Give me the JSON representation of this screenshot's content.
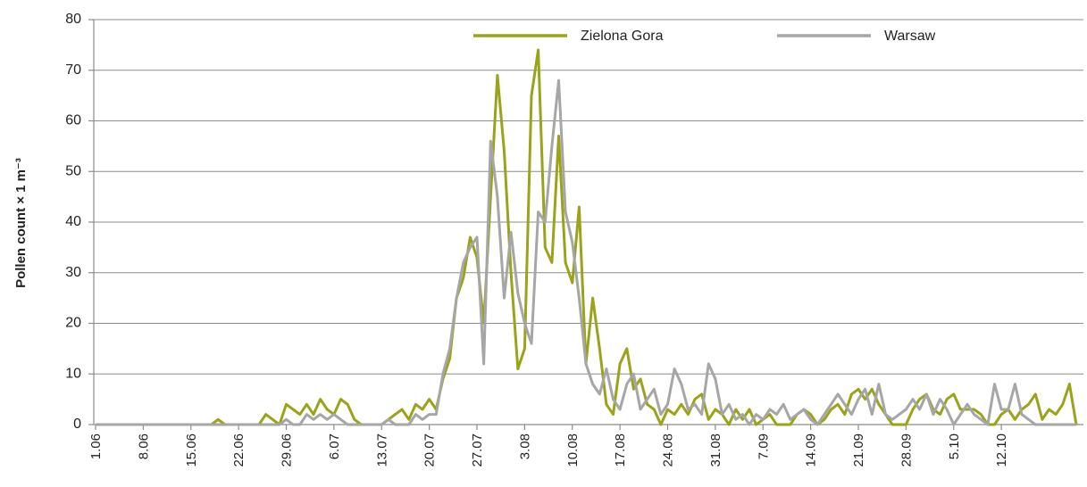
{
  "chart_data": {
    "type": "line",
    "y_label": "Pollen count × 1 m⁻³",
    "categories": [
      "1.06",
      null,
      null,
      null,
      null,
      null,
      null,
      "8.06",
      null,
      null,
      null,
      null,
      null,
      null,
      "15.06",
      null,
      null,
      null,
      null,
      null,
      null,
      "22.06",
      null,
      null,
      null,
      null,
      null,
      null,
      "29.06",
      null,
      null,
      null,
      null,
      null,
      null,
      "6.07",
      null,
      null,
      null,
      null,
      null,
      null,
      "13.07",
      null,
      null,
      null,
      null,
      null,
      null,
      "20.07",
      null,
      null,
      null,
      null,
      null,
      null,
      "27.07",
      null,
      null,
      null,
      null,
      null,
      null,
      "3.08",
      null,
      null,
      null,
      null,
      null,
      null,
      "10.08",
      null,
      null,
      null,
      null,
      null,
      null,
      "17.08",
      null,
      null,
      null,
      null,
      null,
      null,
      "24.08",
      null,
      null,
      null,
      null,
      null,
      null,
      "31.08",
      null,
      null,
      null,
      null,
      null,
      null,
      "7.09",
      null,
      null,
      null,
      null,
      null,
      null,
      "14.09",
      null,
      null,
      null,
      null,
      null,
      null,
      "21.09",
      null,
      null,
      null,
      null,
      null,
      null,
      "28.09",
      null,
      null,
      null,
      null,
      null,
      null,
      "5.10",
      null,
      null,
      null,
      null,
      null,
      null,
      "12.10",
      null,
      null,
      null,
      null,
      null,
      null,
      null,
      null,
      null,
      null,
      null
    ],
    "series": [
      {
        "name": "Zielona Gora",
        "color": "#9aa31a",
        "values": [
          0,
          0,
          0,
          0,
          0,
          0,
          0,
          0,
          0,
          0,
          0,
          0,
          0,
          0,
          0,
          0,
          0,
          0,
          1,
          0,
          0,
          0,
          0,
          0,
          0,
          2,
          1,
          0,
          4,
          3,
          2,
          4,
          2,
          5,
          3,
          2,
          5,
          4,
          1,
          0,
          0,
          0,
          0,
          1,
          2,
          3,
          1,
          4,
          3,
          5,
          3,
          9,
          13,
          25,
          29,
          37,
          33,
          20,
          45,
          69,
          54,
          30,
          11,
          15,
          65,
          74,
          35,
          32,
          57,
          32,
          28,
          43,
          12,
          25,
          15,
          4,
          2,
          12,
          15,
          7,
          9,
          4,
          3,
          0,
          3,
          2,
          4,
          2,
          5,
          6,
          1,
          3,
          2,
          0,
          3,
          1,
          3,
          0,
          1,
          2,
          0,
          0,
          0,
          2,
          3,
          2,
          0,
          1,
          3,
          4,
          2,
          6,
          7,
          5,
          7,
          4,
          2,
          0,
          0,
          0,
          3,
          5,
          6,
          3,
          2,
          5,
          6,
          3,
          3,
          3,
          2,
          0,
          0,
          2,
          3,
          1,
          3,
          4,
          6,
          1,
          3,
          2,
          4,
          8,
          0
        ]
      },
      {
        "name": "Warsaw",
        "color": "#a6a6a6",
        "values": [
          0,
          0,
          0,
          0,
          0,
          0,
          0,
          0,
          0,
          0,
          0,
          0,
          0,
          0,
          0,
          0,
          0,
          0,
          0,
          0,
          0,
          0,
          0,
          0,
          0,
          0,
          0,
          0,
          1,
          0,
          0,
          2,
          1,
          2,
          1,
          2,
          1,
          0,
          0,
          0,
          0,
          0,
          0,
          1,
          0,
          0,
          0,
          2,
          1,
          2,
          2,
          10,
          15,
          25,
          32,
          35,
          37,
          12,
          56,
          45,
          25,
          38,
          26,
          20,
          16,
          42,
          40,
          55,
          68,
          42,
          36,
          25,
          12,
          8,
          6,
          11,
          5,
          3,
          8,
          10,
          3,
          5,
          7,
          2,
          4,
          11,
          8,
          3,
          4,
          2,
          12,
          9,
          2,
          4,
          1,
          2,
          0,
          2,
          1,
          3,
          2,
          4,
          1,
          2,
          3,
          1,
          0,
          2,
          4,
          6,
          4,
          2,
          5,
          7,
          2,
          8,
          2,
          1,
          2,
          3,
          5,
          3,
          6,
          2,
          5,
          3,
          0,
          2,
          4,
          2,
          1,
          0,
          8,
          3,
          3,
          8,
          2,
          1,
          0,
          0,
          0,
          0,
          0,
          0,
          0
        ]
      }
    ],
    "ylim": [
      0,
      80
    ],
    "yticks": [
      0,
      10,
      20,
      30,
      40,
      50,
      60,
      70,
      80
    ],
    "grid": true,
    "legend": "top"
  }
}
